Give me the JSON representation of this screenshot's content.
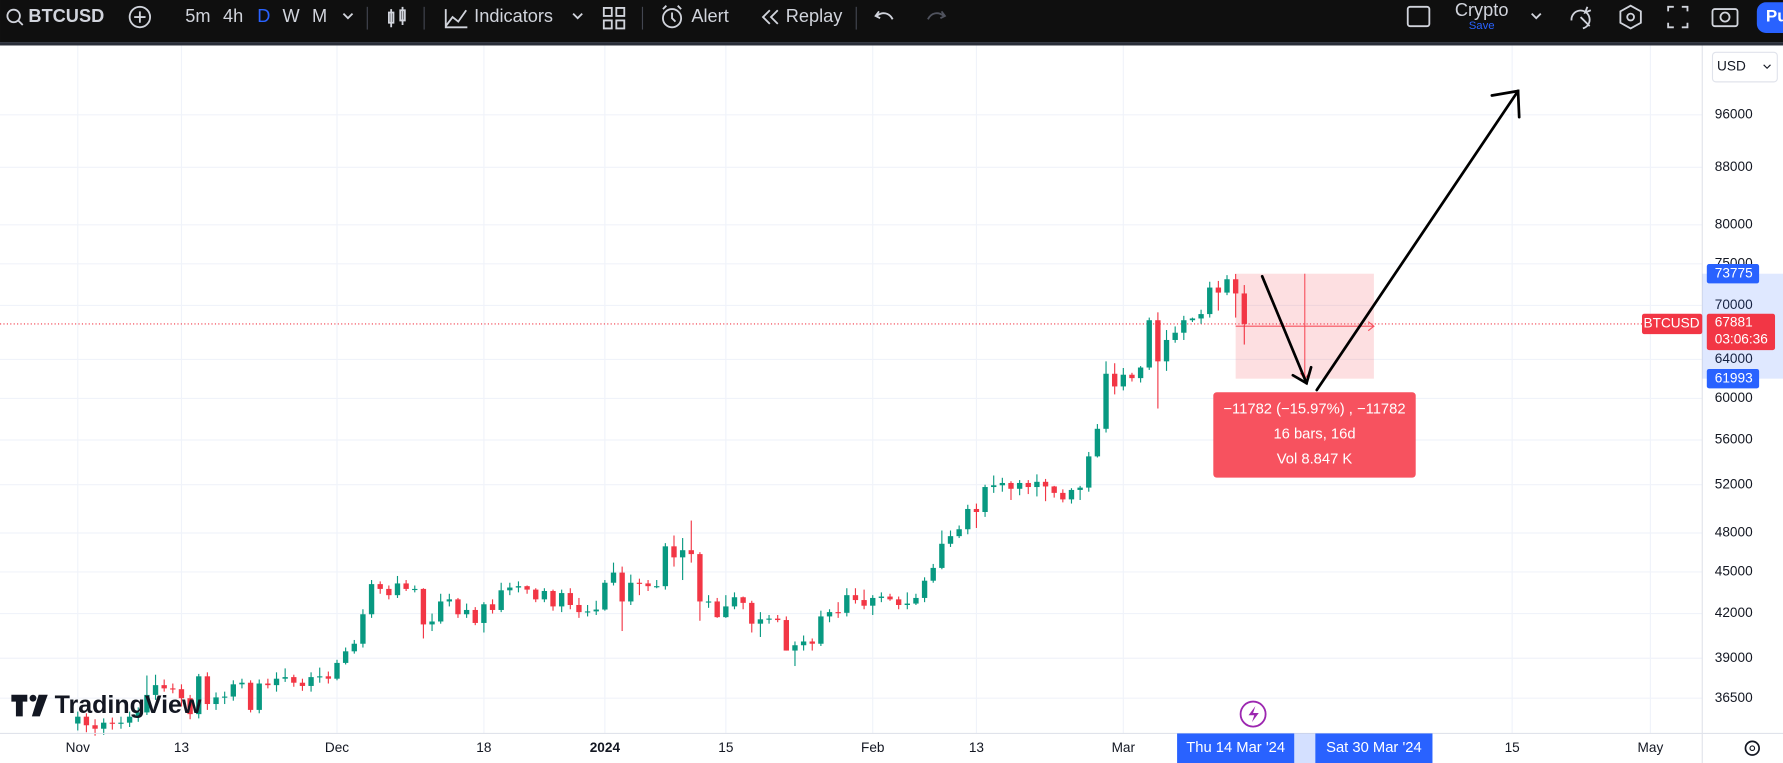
{
  "toolbar": {
    "symbol": "BTCUSD",
    "intervals": [
      "5m",
      "4h",
      "D",
      "W",
      "M"
    ],
    "indicators": "Indicators",
    "alert": "Alert",
    "replay": "Replay",
    "layout_name": "Crypto",
    "save": "Save",
    "publish": "Pu"
  },
  "currency": "USD",
  "branding": "TradingView",
  "chart_data": {
    "type": "candlestick",
    "log": true,
    "grid": true,
    "up_color": "#089981",
    "down_color": "#f23645",
    "xlim": [
      "2023-10-23",
      "2024-05-07"
    ],
    "xticks": [
      {
        "value": "2023-11-01",
        "label": "Nov"
      },
      {
        "value": "2023-11-13",
        "label": "13"
      },
      {
        "value": "2023-12-01",
        "label": "Dec"
      },
      {
        "value": "2023-12-18",
        "label": "18"
      },
      {
        "value": "2024-01-01",
        "label": "2024"
      },
      {
        "value": "2024-01-15",
        "label": "15"
      },
      {
        "value": "2024-02-01",
        "label": "Feb"
      },
      {
        "value": "2024-02-13",
        "label": "13"
      },
      {
        "value": "2024-03-01",
        "label": "Mar"
      },
      {
        "value": "2024-04-15",
        "label": "15"
      },
      {
        "value": "2024-05-01",
        "label": "May"
      }
    ],
    "ylim": [
      34430,
      107700
    ],
    "yticks": [
      36500,
      39000,
      42000,
      45000,
      48000,
      52000,
      56000,
      60000,
      64000,
      70000,
      75000,
      80000,
      88000,
      96000
    ],
    "x": [
      "2023-11-01",
      "2023-11-02",
      "2023-11-03",
      "2023-11-04",
      "2023-11-05",
      "2023-11-06",
      "2023-11-07",
      "2023-11-08",
      "2023-11-09",
      "2023-11-10",
      "2023-11-11",
      "2023-11-12",
      "2023-11-13",
      "2023-11-14",
      "2023-11-15",
      "2023-11-16",
      "2023-11-17",
      "2023-11-18",
      "2023-11-19",
      "2023-11-20",
      "2023-11-21",
      "2023-11-22",
      "2023-11-23",
      "2023-11-24",
      "2023-11-25",
      "2023-11-26",
      "2023-11-27",
      "2023-11-28",
      "2023-11-29",
      "2023-11-30",
      "2023-12-01",
      "2023-12-02",
      "2023-12-03",
      "2023-12-04",
      "2023-12-05",
      "2023-12-06",
      "2023-12-07",
      "2023-12-08",
      "2023-12-09",
      "2023-12-10",
      "2023-12-11",
      "2023-12-12",
      "2023-12-13",
      "2023-12-14",
      "2023-12-15",
      "2023-12-16",
      "2023-12-17",
      "2023-12-18",
      "2023-12-19",
      "2023-12-20",
      "2023-12-21",
      "2023-12-22",
      "2023-12-23",
      "2023-12-24",
      "2023-12-25",
      "2023-12-26",
      "2023-12-27",
      "2023-12-28",
      "2023-12-29",
      "2023-12-30",
      "2023-12-31",
      "2024-01-01",
      "2024-01-02",
      "2024-01-03",
      "2024-01-04",
      "2024-01-05",
      "2024-01-06",
      "2024-01-07",
      "2024-01-08",
      "2024-01-09",
      "2024-01-10",
      "2024-01-11",
      "2024-01-12",
      "2024-01-13",
      "2024-01-14",
      "2024-01-15",
      "2024-01-16",
      "2024-01-17",
      "2024-01-18",
      "2024-01-19",
      "2024-01-20",
      "2024-01-21",
      "2024-01-22",
      "2024-01-23",
      "2024-01-24",
      "2024-01-25",
      "2024-01-26",
      "2024-01-27",
      "2024-01-28",
      "2024-01-29",
      "2024-01-30",
      "2024-01-31",
      "2024-02-01",
      "2024-02-02",
      "2024-02-03",
      "2024-02-04",
      "2024-02-05",
      "2024-02-06",
      "2024-02-07",
      "2024-02-08",
      "2024-02-09",
      "2024-02-10",
      "2024-02-11",
      "2024-02-12",
      "2024-02-13",
      "2024-02-14",
      "2024-02-15",
      "2024-02-16",
      "2024-02-17",
      "2024-02-18",
      "2024-02-19",
      "2024-02-20",
      "2024-02-21",
      "2024-02-22",
      "2024-02-23",
      "2024-02-24",
      "2024-02-25",
      "2024-02-26",
      "2024-02-27",
      "2024-02-28",
      "2024-02-29",
      "2024-03-01",
      "2024-03-02",
      "2024-03-03",
      "2024-03-04",
      "2024-03-05",
      "2024-03-06",
      "2024-03-07",
      "2024-03-08",
      "2024-03-09",
      "2024-03-10",
      "2024-03-11",
      "2024-03-12",
      "2024-03-13",
      "2024-03-14",
      "2024-03-15"
    ],
    "open": [
      35000,
      35400,
      34900,
      34700,
      35050,
      35000,
      35050,
      35400,
      35650,
      36700,
      37300,
      37100,
      37050,
      36500,
      35550,
      37850,
      36150,
      36550,
      36600,
      37350,
      37450,
      35800,
      37400,
      37300,
      37700,
      37800,
      37450,
      37250,
      37800,
      37850,
      37700,
      38700,
      39450,
      39950,
      41950,
      44100,
      43750,
      43300,
      44150,
      43750,
      43750,
      41250,
      41450,
      42850,
      43000,
      41950,
      42250,
      41350,
      42650,
      42250,
      43650,
      43850,
      43950,
      43700,
      43000,
      43600,
      42500,
      43450,
      42600,
      42100,
      42150,
      42280,
      44200,
      44950,
      42850,
      44200,
      44150,
      43950,
      43950,
      46950,
      46100,
      46650,
      46350,
      42850,
      42850,
      41750,
      42500,
      43150,
      42750,
      41300,
      41600,
      41650,
      41550,
      39500,
      39850,
      40100,
      39950,
      41800,
      42100,
      42050,
      43300,
      42950,
      42550,
      43100,
      43200,
      43000,
      42600,
      42700,
      43100,
      44350,
      45300,
      47150,
      47750,
      48300,
      49950,
      49700,
      51800,
      51950,
      52150,
      51650,
      52150,
      51800,
      52250,
      51850,
      51300,
      50750,
      51550,
      51750,
      54500,
      57050,
      62500,
      61200,
      62400,
      62050,
      63150,
      68300,
      63800,
      66100,
      66900,
      68300,
      68500,
      69000,
      72100,
      71500,
      73100,
      71400
    ],
    "high": [
      35700,
      35600,
      35250,
      35300,
      35350,
      35400,
      35700,
      35950,
      37900,
      37950,
      37650,
      37400,
      37350,
      36700,
      38000,
      38100,
      36850,
      36900,
      37600,
      37700,
      37600,
      37650,
      37700,
      38100,
      38350,
      37950,
      37700,
      38100,
      38400,
      38150,
      38900,
      39700,
      40200,
      42300,
      44400,
      44300,
      44000,
      44700,
      44400,
      44000,
      43800,
      42000,
      43400,
      43400,
      43100,
      42700,
      42450,
      42800,
      43000,
      44200,
      44200,
      44300,
      44000,
      43800,
      43800,
      43700,
      43700,
      43800,
      43100,
      42600,
      42900,
      44400,
      45700,
      45400,
      44800,
      44500,
      44400,
      44400,
      47200,
      47800,
      47600,
      49000,
      46500,
      43300,
      43100,
      43300,
      43500,
      43200,
      42900,
      42100,
      41900,
      41900,
      41800,
      40100,
      40500,
      40300,
      42200,
      42300,
      42800,
      43800,
      43800,
      43700,
      43300,
      43500,
      43400,
      43200,
      43500,
      43400,
      44600,
      45600,
      48200,
      48200,
      48600,
      50300,
      50400,
      52000,
      52800,
      52600,
      52300,
      52400,
      52400,
      52900,
      52500,
      51900,
      51600,
      51700,
      51900,
      54900,
      57500,
      63800,
      63600,
      63100,
      62600,
      63300,
      68600,
      69200,
      67200,
      67600,
      68800,
      68600,
      69500,
      72800,
      72900,
      73600,
      73750,
      72400
    ],
    "low": [
      34600,
      34500,
      34300,
      34350,
      34650,
      34700,
      34800,
      35100,
      35500,
      36400,
      36900,
      36800,
      36000,
      35250,
      35300,
      35800,
      35800,
      36150,
      36350,
      37100,
      35650,
      35600,
      37100,
      36900,
      37500,
      37200,
      36950,
      36900,
      37450,
      37400,
      37600,
      38600,
      39300,
      39700,
      41700,
      43400,
      43000,
      43100,
      43600,
      43500,
      40300,
      40800,
      41300,
      42500,
      41700,
      41700,
      41200,
      40700,
      42000,
      42100,
      43300,
      43500,
      43400,
      42800,
      42800,
      42200,
      42100,
      42300,
      41700,
      41800,
      41900,
      42200,
      44000,
      40800,
      42600,
      43300,
      43600,
      43800,
      43700,
      45400,
      44400,
      45700,
      41500,
      42400,
      41700,
      41700,
      42300,
      42300,
      40700,
      40400,
      41300,
      41400,
      39500,
      38500,
      39500,
      39500,
      39800,
      41400,
      41700,
      41800,
      42700,
      42300,
      41900,
      42800,
      42900,
      42300,
      42300,
      42600,
      42800,
      44200,
      45200,
      46900,
      47600,
      47900,
      48400,
      49300,
      51300,
      51400,
      50700,
      51100,
      51200,
      51000,
      50600,
      50900,
      50500,
      50400,
      50700,
      51400,
      54400,
      56700,
      60400,
      60800,
      61700,
      61600,
      62900,
      59000,
      62800,
      65800,
      66100,
      68100,
      67900,
      68600,
      69400,
      71200,
      68600,
      65600
    ],
    "close": [
      35400,
      34900,
      34700,
      35050,
      35000,
      35050,
      35400,
      35650,
      36700,
      37300,
      37100,
      37050,
      36500,
      35550,
      37850,
      36150,
      36550,
      36600,
      37350,
      37450,
      35800,
      37400,
      37300,
      37700,
      37800,
      37450,
      37250,
      37800,
      37850,
      37700,
      38700,
      39450,
      39950,
      41950,
      44100,
      43750,
      43300,
      44150,
      43750,
      43750,
      41250,
      41450,
      42850,
      43000,
      41950,
      42250,
      41350,
      42650,
      42250,
      43650,
      43850,
      43950,
      43700,
      43000,
      43600,
      42500,
      43450,
      42600,
      42100,
      42150,
      42280,
      44200,
      44950,
      42850,
      44200,
      44150,
      43950,
      43950,
      46950,
      46100,
      46650,
      46350,
      42850,
      42850,
      41750,
      42500,
      43150,
      42750,
      41300,
      41600,
      41650,
      41550,
      39500,
      39850,
      40100,
      39950,
      41800,
      42100,
      42050,
      43300,
      42950,
      42550,
      43100,
      43200,
      43000,
      42600,
      42700,
      43100,
      44350,
      45300,
      47150,
      47750,
      48300,
      49950,
      49700,
      51800,
      51950,
      52150,
      51650,
      52150,
      51800,
      52250,
      51850,
      51300,
      50750,
      51550,
      51750,
      54500,
      57050,
      62500,
      61200,
      62400,
      62050,
      63150,
      68300,
      63800,
      66100,
      66900,
      68300,
      68500,
      69000,
      72100,
      71500,
      73100,
      71400,
      67881
    ],
    "last_price": 67881,
    "countdown": "03:06:36",
    "symbol_tag": "BTCUSD",
    "measure": {
      "top": 73775,
      "bottom": 61993,
      "range": [
        {
          "value": "2024-03-14",
          "label": "Thu 14 Mar '24"
        },
        {
          "value": "2024-03-30",
          "label": "Sat 30 Mar '24"
        }
      ],
      "lines": [
        "−11782 (−15.97%) , −11782",
        "16 bars, 16d",
        "Vol 8.847 K"
      ]
    }
  }
}
